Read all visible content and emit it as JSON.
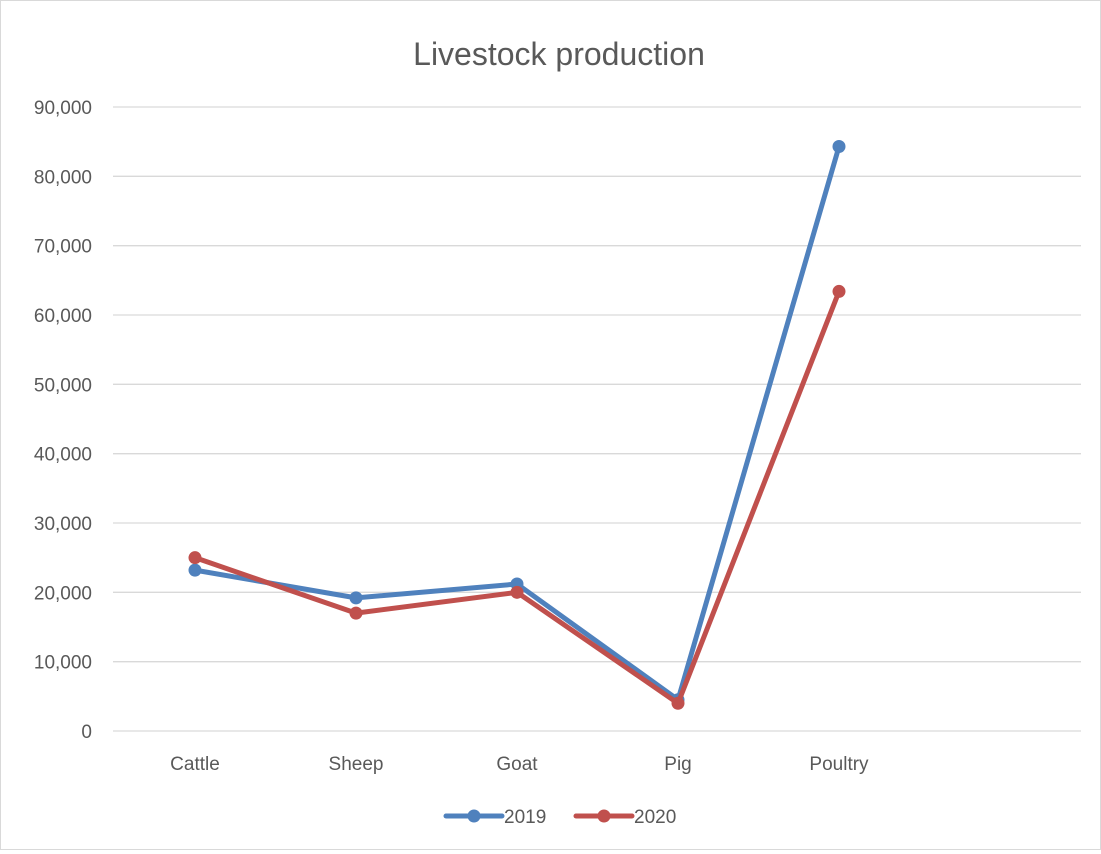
{
  "chart_data": {
    "type": "line",
    "title": "Livestock production",
    "categories": [
      "Cattle",
      "Sheep",
      "Goat",
      "Pig",
      "Poultry"
    ],
    "series": [
      {
        "name": "2019",
        "values": [
          23200,
          19200,
          21200,
          4500,
          84300
        ],
        "color": "#4f81bd"
      },
      {
        "name": "2020",
        "values": [
          25000,
          17000,
          20000,
          4000,
          63400
        ],
        "color": "#c0504d"
      }
    ],
    "xlabel": "",
    "ylabel": "",
    "ylim": [
      0,
      90000
    ],
    "ytick_step": 10000,
    "yticks": [
      "0",
      "10,000",
      "20,000",
      "30,000",
      "40,000",
      "50,000",
      "60,000",
      "70,000",
      "80,000",
      "90,000"
    ],
    "grid": true,
    "legend": "bottom"
  }
}
